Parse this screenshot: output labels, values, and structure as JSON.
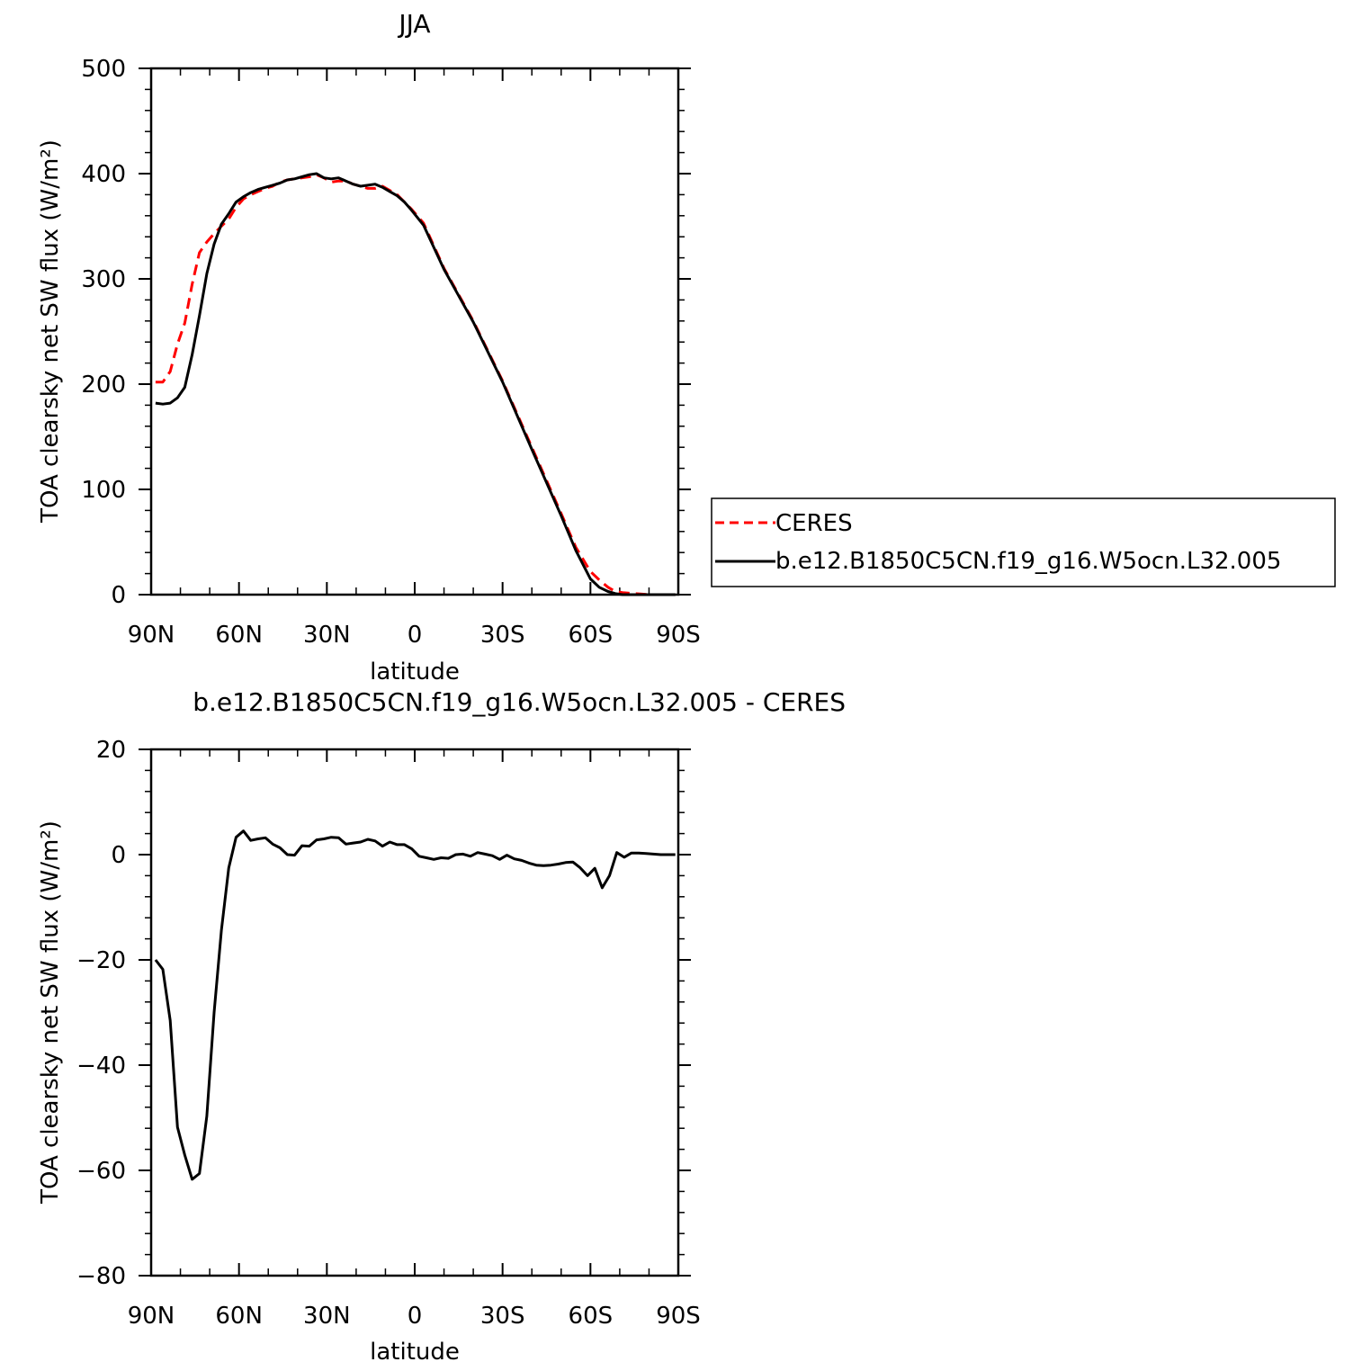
{
  "chart_data": [
    {
      "type": "line",
      "title": "JJA",
      "xlabel": "latitude",
      "ylabel": "TOA clearsky net SW flux (W/m²)",
      "xlim": [
        90,
        -90
      ],
      "ylim": [
        0,
        500
      ],
      "xticks": [
        90,
        60,
        30,
        0,
        -30,
        -60,
        -90
      ],
      "xtick_labels": [
        "90N",
        "60N",
        "30N",
        "0",
        "30S",
        "60S",
        "90S"
      ],
      "yticks": [
        0,
        100,
        200,
        300,
        400,
        500
      ],
      "ytick_labels": [
        "0",
        "100",
        "200",
        "300",
        "400",
        "500"
      ],
      "grid": false,
      "legend": "right-outside",
      "series": [
        {
          "name": "CERES",
          "style": "dashed",
          "color": "#ff0000",
          "x": [
            88.5,
            86,
            83.5,
            81,
            78.5,
            76,
            73.5,
            71,
            68.5,
            66,
            63.5,
            61,
            58.5,
            56,
            53.5,
            51,
            48.5,
            46,
            43.5,
            41,
            38.5,
            36,
            33.5,
            31,
            28.5,
            26,
            23.5,
            21,
            18.5,
            16,
            13.5,
            11,
            8.5,
            6,
            3.5,
            1,
            -3,
            -10,
            -20,
            -30,
            -40,
            -50,
            -55,
            -60,
            -63,
            -66,
            -68.5,
            -71,
            -75,
            -80,
            -85,
            -89
          ],
          "y": [
            202,
            202,
            212,
            238,
            258,
            295,
            325,
            335,
            343,
            350,
            357,
            368,
            376,
            380,
            383,
            386,
            388,
            392,
            394,
            395,
            396,
            397,
            399,
            396,
            392,
            393,
            393,
            390,
            388,
            386,
            386,
            388,
            384,
            380,
            373,
            366,
            353,
            310,
            260,
            203,
            140,
            77,
            45,
            22,
            14,
            7,
            3,
            2,
            1,
            0,
            0,
            0
          ]
        },
        {
          "name": "b.e12.B1850C5CN.f19_g16.W5ocn.L32.005",
          "style": "solid",
          "color": "#000000",
          "x": [
            88.5,
            86,
            83.5,
            81,
            78.5,
            76,
            73.5,
            71,
            68.5,
            66,
            63.5,
            61,
            58.5,
            56,
            53.5,
            51,
            48.5,
            46,
            43.5,
            41,
            38.5,
            36,
            33.5,
            31,
            28.5,
            26,
            23.5,
            21,
            18.5,
            16,
            13.5,
            11,
            8.5,
            6,
            3.5,
            1,
            -3,
            -10,
            -20,
            -30,
            -40,
            -50,
            -55,
            -60,
            -63,
            -66,
            -68.5,
            -71,
            -75,
            -80,
            -85,
            -89
          ],
          "y": [
            182,
            181,
            182,
            187,
            197,
            228,
            265,
            305,
            333,
            352,
            362,
            373,
            378,
            382,
            385,
            387,
            389,
            391,
            394,
            395,
            397,
            399,
            400,
            396,
            395,
            396,
            393,
            390,
            388,
            389,
            390,
            387,
            383,
            379,
            373,
            365,
            351,
            309,
            259,
            202,
            138,
            75,
            42,
            15,
            7,
            3,
            1,
            0,
            0,
            0,
            0,
            0
          ]
        }
      ]
    },
    {
      "type": "line",
      "title": "b.e12.B1850C5CN.f19_g16.W5ocn.L32.005 - CERES",
      "xlabel": "latitude",
      "ylabel": "TOA clearsky net SW flux (W/m²)",
      "xlim": [
        90,
        -90
      ],
      "ylim": [
        -80,
        20
      ],
      "xticks": [
        90,
        60,
        30,
        0,
        -30,
        -60,
        -90
      ],
      "xtick_labels": [
        "90N",
        "60N",
        "30N",
        "0",
        "30S",
        "60S",
        "90S"
      ],
      "yticks": [
        -80,
        -60,
        -40,
        -20,
        0,
        20
      ],
      "ytick_labels": [
        "−80",
        "−60",
        "−40",
        "−20",
        "0",
        "20"
      ],
      "grid": false,
      "series": [
        {
          "style": "solid",
          "color": "#000000",
          "x": [
            88.5,
            86,
            83.5,
            81,
            78.5,
            76,
            73.5,
            71,
            68.5,
            66,
            63.5,
            61,
            58.5,
            56,
            53.5,
            51,
            48.5,
            46,
            43.5,
            41,
            38.5,
            36,
            33.5,
            31,
            28.5,
            26,
            23.5,
            21,
            18.5,
            16,
            13.5,
            11,
            8.5,
            6,
            3.5,
            1,
            -1.5,
            -4,
            -6.5,
            -9,
            -11.5,
            -14,
            -16.5,
            -19,
            -21.5,
            -24,
            -26.5,
            -29,
            -31.5,
            -34,
            -36.5,
            -39,
            -41.5,
            -44,
            -46.5,
            -49,
            -51.5,
            -54,
            -56.5,
            -59,
            -61.5,
            -64,
            -66.5,
            -69,
            -71.5,
            -74,
            -76.5,
            -79,
            -81.5,
            -84,
            -86.5,
            -89
          ],
          "y": [
            -20,
            -21.8,
            -31.5,
            -51.8,
            -57.1,
            -61.7,
            -60.6,
            -49.7,
            -30,
            -14.4,
            -2.5,
            3.3,
            4.5,
            2.7,
            3,
            3.2,
            2,
            1.3,
            0,
            -0.1,
            1.7,
            1.6,
            2.8,
            3,
            3.3,
            3.2,
            2,
            2.2,
            2.4,
            2.9,
            2.6,
            1.6,
            2.4,
            1.9,
            1.9,
            1.1,
            -0.3,
            -0.6,
            -0.9,
            -0.6,
            -0.7,
            0,
            0.1,
            -0.3,
            0.4,
            0.1,
            -0.2,
            -0.9,
            -0.1,
            -0.8,
            -1.1,
            -1.6,
            -2,
            -2.1,
            -2,
            -1.8,
            -1.5,
            -1.4,
            -2.5,
            -4,
            -2.6,
            -6.3,
            -4,
            0.4,
            -0.5,
            0.3,
            0.3,
            0.2,
            0.1,
            0,
            0,
            0
          ]
        }
      ]
    }
  ]
}
